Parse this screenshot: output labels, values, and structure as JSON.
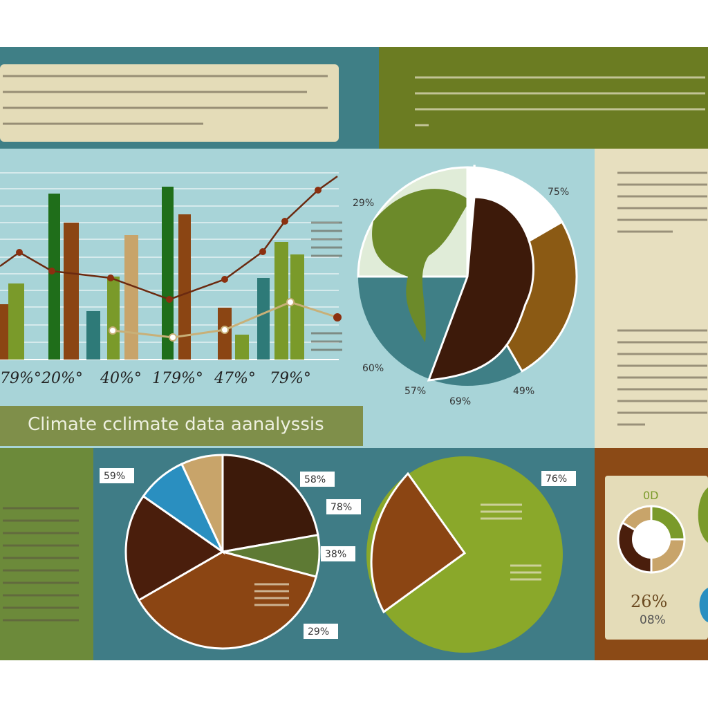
{
  "title": "Climate cclimate data aanalyssis",
  "bar_panel": {
    "axis_labels": [
      "79%°",
      "20%°",
      "40%°",
      "179%°",
      "47%°",
      "79%°"
    ]
  },
  "globe_pie": {
    "labels": [
      "29%",
      "75%",
      "60%",
      "57%",
      "69%",
      "49%"
    ]
  },
  "pie_left": {
    "labels": [
      "59%",
      "58%",
      "78%",
      "38%",
      "29%"
    ]
  },
  "pie_right": {
    "labels": [
      "76%"
    ]
  },
  "donut": {
    "labels": [
      "0D",
      "26%",
      "08%"
    ]
  }
}
